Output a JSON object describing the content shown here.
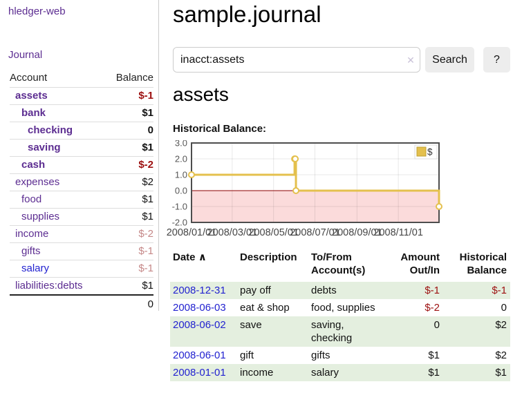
{
  "sidebar": {
    "app_title": "hledger-web",
    "journal_link": "Journal",
    "accounts_table": {
      "headers": {
        "account": "Account",
        "balance": "Balance"
      },
      "rows": [
        {
          "name": "assets",
          "depth": 1,
          "balance": "$-1",
          "in_query": true
        },
        {
          "name": "bank",
          "depth": 2,
          "balance": "$1",
          "in_query": true
        },
        {
          "name": "checking",
          "depth": 3,
          "balance": "0",
          "in_query": true
        },
        {
          "name": "saving",
          "depth": 3,
          "balance": "$1",
          "in_query": true
        },
        {
          "name": "cash",
          "depth": 2,
          "balance": "$-2",
          "in_query": true
        },
        {
          "name": "expenses",
          "depth": 1,
          "balance": "$2",
          "in_query": false
        },
        {
          "name": "food",
          "depth": 2,
          "balance": "$1",
          "in_query": false
        },
        {
          "name": "supplies",
          "depth": 2,
          "balance": "$1",
          "in_query": false
        },
        {
          "name": "income",
          "depth": 1,
          "balance": "$-2",
          "in_query": false
        },
        {
          "name": "gifts",
          "depth": 2,
          "balance": "$-1",
          "in_query": false
        },
        {
          "name": "salary",
          "depth": 2,
          "balance": "$-1",
          "in_query": false,
          "link_blue": true
        },
        {
          "name": "liabilities:debts",
          "depth": 1,
          "balance": "$1",
          "in_query": false
        }
      ],
      "total": "0"
    }
  },
  "header": {
    "title": "sample.journal"
  },
  "search": {
    "value": "inacct:assets",
    "clear_icon": "✕",
    "button_label": "Search",
    "help_label": "?"
  },
  "account_page": {
    "heading": "assets",
    "chart_label": "Historical Balance:"
  },
  "chart_data": {
    "type": "line",
    "step": true,
    "title": "Historical Balance:",
    "series": [
      {
        "name": "$",
        "color": "#e4c04d",
        "points": [
          [
            "2008-01-01",
            1
          ],
          [
            "2008-06-01",
            2
          ],
          [
            "2008-06-02",
            2
          ],
          [
            "2008-06-03",
            0
          ],
          [
            "2008-12-31",
            -1
          ]
        ]
      }
    ],
    "xlim": [
      "2008-01-01",
      "2008-12-31"
    ],
    "ylim": [
      -2,
      3
    ],
    "yticks": [
      3.0,
      2.0,
      1.0,
      0.0,
      -1.0,
      -2.0
    ],
    "xticks": [
      "2008/01/01",
      "2008/03/01",
      "2008/05/01",
      "2008/07/01",
      "2008/09/01",
      "2008/11/01"
    ],
    "grid": true,
    "legend_position": "top-right",
    "negative_region_color": "#fbdbdb",
    "zero_line_color": "#8b0000"
  },
  "register": {
    "sort_arrow": "∧",
    "columns": [
      {
        "label": "Date"
      },
      {
        "label": "Description"
      },
      {
        "label": "To/From Account(s)"
      },
      {
        "label": "Amount Out/In"
      },
      {
        "label": "Historical Balance"
      }
    ],
    "rows": [
      {
        "date": "2008-12-31",
        "description": "pay off",
        "accounts": "debts",
        "amount": "$-1",
        "balance": "$-1"
      },
      {
        "date": "2008-06-03",
        "description": "eat & shop",
        "accounts": "food, supplies",
        "amount": "$-2",
        "balance": "0"
      },
      {
        "date": "2008-06-02",
        "description": "save",
        "accounts": "saving, checking",
        "amount": "0",
        "balance": "$2"
      },
      {
        "date": "2008-06-01",
        "description": "gift",
        "accounts": "gifts",
        "amount": "$1",
        "balance": "$2"
      },
      {
        "date": "2008-01-01",
        "description": "income",
        "accounts": "salary",
        "amount": "$1",
        "balance": "$1"
      }
    ]
  }
}
